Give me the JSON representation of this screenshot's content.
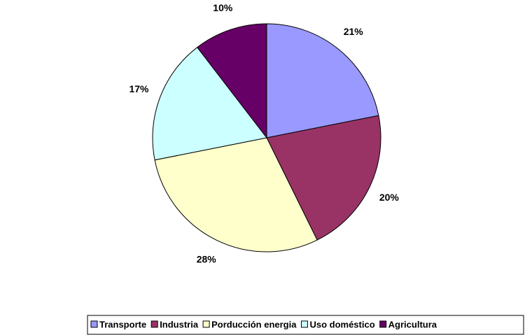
{
  "chart_data": {
    "type": "pie",
    "categories": [
      "Transporte",
      "Industria",
      "Porducción energia",
      "Uso doméstico",
      "Agricultura"
    ],
    "values": [
      21,
      20,
      28,
      17,
      10
    ],
    "value_labels": [
      "21%",
      "20%",
      "28%",
      "17%",
      "10%"
    ],
    "colors": [
      "#9999ff",
      "#993366",
      "#ffffcc",
      "#ccffff",
      "#660066"
    ],
    "legend": "bottom"
  }
}
